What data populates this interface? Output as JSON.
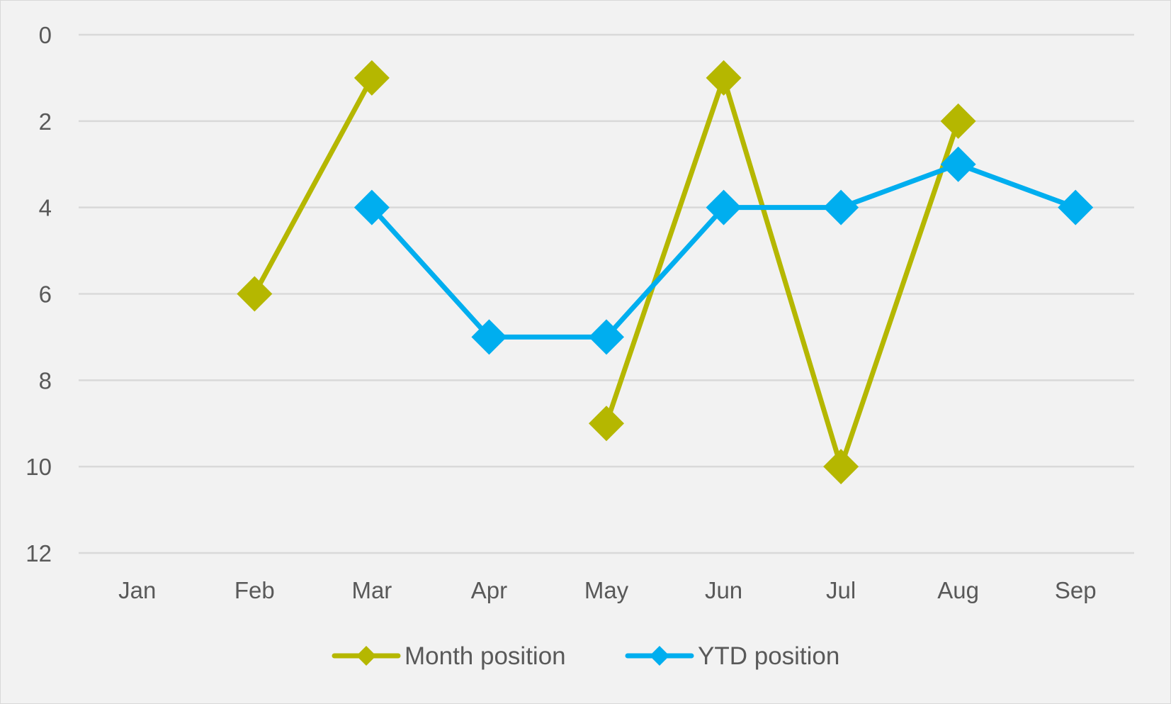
{
  "chart_data": {
    "type": "line",
    "title": "",
    "xlabel": "",
    "ylabel": "",
    "categories": [
      "Jan",
      "Feb",
      "Mar",
      "Apr",
      "May",
      "Jun",
      "Jul",
      "Aug",
      "Sep"
    ],
    "y_axis": {
      "min": 0,
      "max": 12,
      "step": 2,
      "reversed": true,
      "ticks": [
        "0",
        "2",
        "4",
        "6",
        "8",
        "10",
        "12"
      ]
    },
    "grid": true,
    "legend_position": "bottom",
    "series": [
      {
        "name": "Month position",
        "color": "#b5b700",
        "marker": "diamond",
        "values": [
          null,
          6,
          1,
          null,
          9,
          1,
          10,
          2,
          null
        ]
      },
      {
        "name": "YTD position",
        "color": "#00aeef",
        "marker": "diamond",
        "values": [
          null,
          null,
          4,
          7,
          7,
          4,
          4,
          3,
          4
        ]
      }
    ]
  }
}
